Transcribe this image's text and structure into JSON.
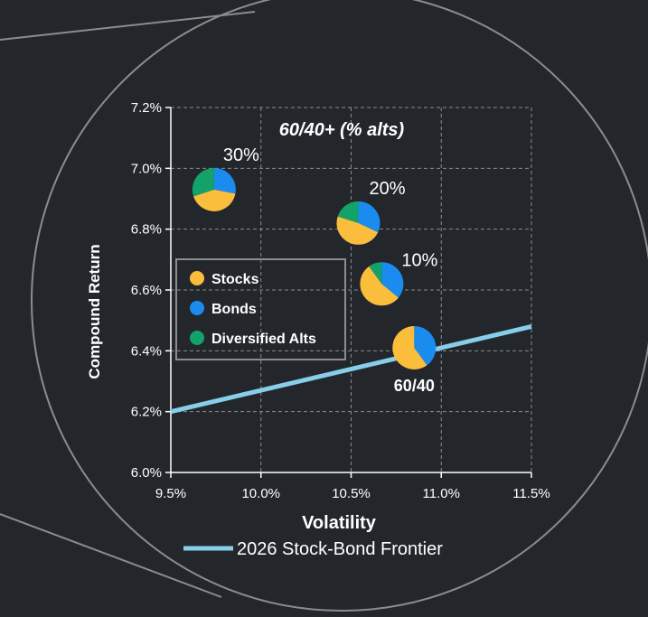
{
  "colors": {
    "background": "#23272b",
    "stocks": "#fbbd3c",
    "bonds": "#1a8cf0",
    "alts": "#12a26a",
    "frontier": "#87ceeb",
    "outline": "#8c8c8c",
    "grid": "#8a8a8a",
    "text": "#ffffff"
  },
  "chart_data": {
    "type": "scatter",
    "title": "60/40+ (% alts)",
    "xlabel": "Volatility",
    "ylabel": "Compound Return",
    "xlim": [
      9.5,
      11.5
    ],
    "ylim": [
      6.0,
      7.2
    ],
    "x_ticks": [
      "9.5%",
      "10.0%",
      "10.5%",
      "11.0%",
      "11.5%"
    ],
    "y_ticks": [
      "6.0%",
      "6.2%",
      "6.4%",
      "6.6%",
      "6.8%",
      "7.0%",
      "7.2%"
    ],
    "grid": true,
    "grid_style": "dashed",
    "legend": {
      "placement": "inside-left",
      "entries": [
        "Stocks",
        "Bonds",
        "Diversified Alts"
      ]
    },
    "line_legend": "2026 Stock-Bond Frontier",
    "frontier": {
      "name": "2026 Stock-Bond Frontier",
      "x": [
        9.5,
        11.5
      ],
      "y": [
        6.2,
        6.48
      ]
    },
    "portfolios": [
      {
        "label": "60/40",
        "x": 10.85,
        "y": 6.41,
        "stocks": 60,
        "bonds": 40,
        "alts": 0,
        "label_bold": true
      },
      {
        "label": "10%",
        "x": 10.67,
        "y": 6.62,
        "stocks": 54,
        "bonds": 36,
        "alts": 10,
        "label_bold": false
      },
      {
        "label": "20%",
        "x": 10.54,
        "y": 6.82,
        "stocks": 48,
        "bonds": 32,
        "alts": 20,
        "label_bold": false
      },
      {
        "label": "30%",
        "x": 9.74,
        "y": 6.93,
        "stocks": 42,
        "bonds": 28,
        "alts": 30,
        "label_bold": false
      }
    ]
  }
}
